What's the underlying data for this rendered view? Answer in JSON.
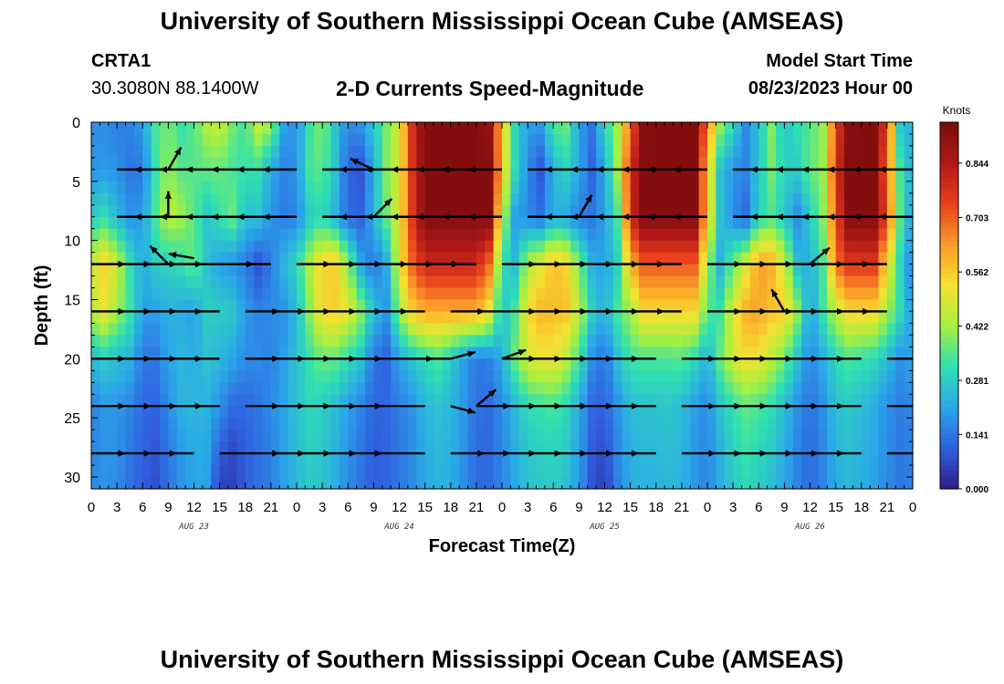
{
  "header": {
    "title": "University of Southern Mississippi Ocean Cube (AMSEAS)",
    "station_id": "CRTA1",
    "coordinates": "30.3080N  88.1400W",
    "variable_title": "2-D Currents Speed-Magnitude",
    "model_start_label": "Model Start Time",
    "model_start_value": "08/23/2023 Hour 00"
  },
  "footer": {
    "title": "University of Southern Mississippi Ocean Cube (AMSEAS)"
  },
  "chart_data": {
    "type": "heatmap",
    "title": "2-D Currents Speed-Magnitude",
    "xlabel": "Forecast Time(Z)",
    "ylabel": "Depth (ft)",
    "xlim": [
      0,
      96
    ],
    "ylim": [
      0,
      31
    ],
    "x_ticks": [
      0,
      3,
      6,
      9,
      12,
      15,
      18,
      21,
      24,
      27,
      30,
      33,
      36,
      39,
      42,
      45,
      48,
      51,
      54,
      57,
      60,
      63,
      66,
      69,
      72,
      75,
      78,
      81,
      84,
      87,
      90,
      93,
      96
    ],
    "x_tick_labels": [
      "0",
      "3",
      "6",
      "9",
      "12",
      "15",
      "18",
      "21",
      "0",
      "3",
      "6",
      "9",
      "12",
      "15",
      "18",
      "21",
      "0",
      "3",
      "6",
      "9",
      "12",
      "15",
      "18",
      "21",
      "0",
      "3",
      "6",
      "9",
      "12",
      "15",
      "18",
      "21",
      "0"
    ],
    "day_labels": [
      {
        "x": 12,
        "label": "AUG 23"
      },
      {
        "x": 36,
        "label": "AUG 24"
      },
      {
        "x": 60,
        "label": "AUG 25"
      },
      {
        "x": 84,
        "label": "AUG 26"
      }
    ],
    "y_ticks": [
      0,
      5,
      10,
      15,
      20,
      25,
      30
    ],
    "y_tick_labels": [
      "0",
      "5",
      "10",
      "15",
      "20",
      "25",
      "30"
    ],
    "colorbar": {
      "label": "Knots",
      "min": 0.0,
      "max": 0.95,
      "ticks": [
        0.0,
        0.141,
        0.281,
        0.422,
        0.562,
        0.703,
        0.844
      ],
      "tick_labels": [
        "0.000",
        "0.141",
        "0.281",
        "0.422",
        "0.562",
        "0.703",
        "0.844"
      ],
      "colors": [
        "#2e1d8a",
        "#3060e0",
        "#2aa8e8",
        "#30e0b0",
        "#a6f040",
        "#f6e030",
        "#fb9a28",
        "#e8401c",
        "#b01818",
        "#7a0c0c"
      ]
    },
    "time_hours": [
      0,
      1.5,
      3,
      4.5,
      6,
      7.5,
      9,
      10.5,
      12,
      13.5,
      15,
      16.5,
      18,
      19.5,
      21,
      22.5,
      24,
      25.5,
      27,
      28.5,
      30,
      31.5,
      33,
      34.5,
      36,
      37.5,
      39,
      40.5,
      42,
      43.5,
      45,
      46.5,
      48,
      49.5,
      51,
      52.5,
      54,
      55.5,
      57,
      58.5,
      60,
      61.5,
      63,
      64.5,
      66,
      67.5,
      69,
      70.5,
      72,
      73.5,
      75,
      76.5,
      78,
      79.5,
      81,
      82.5,
      84,
      85.5,
      87,
      88.5,
      90,
      91.5,
      93,
      94.5,
      96
    ],
    "depth_ft": [
      0,
      4,
      8,
      12,
      16,
      20,
      24,
      28,
      31
    ],
    "speed_kn": [
      [
        0.18,
        0.17,
        0.15,
        0.16,
        0.2,
        0.34,
        0.38,
        0.32,
        0.35,
        0.44,
        0.47,
        0.38,
        0.33,
        0.47,
        0.42,
        0.21,
        0.18,
        0.32,
        0.4,
        0.26,
        0.17,
        0.19,
        0.27,
        0.38,
        0.49,
        0.78,
        0.93,
        0.93,
        0.93,
        0.93,
        0.93,
        0.89,
        0.57,
        0.3,
        0.2,
        0.2,
        0.35,
        0.37,
        0.2,
        0.14,
        0.3,
        0.42,
        0.69,
        0.92,
        0.93,
        0.93,
        0.93,
        0.93,
        0.67,
        0.42,
        0.3,
        0.17,
        0.26,
        0.39,
        0.25,
        0.32,
        0.35,
        0.41,
        0.73,
        0.92,
        0.93,
        0.93,
        0.75,
        0.27,
        0.21
      ],
      [
        0.18,
        0.19,
        0.18,
        0.14,
        0.14,
        0.32,
        0.41,
        0.35,
        0.35,
        0.36,
        0.37,
        0.34,
        0.32,
        0.32,
        0.22,
        0.16,
        0.18,
        0.34,
        0.36,
        0.26,
        0.11,
        0.09,
        0.22,
        0.39,
        0.49,
        0.77,
        0.93,
        0.93,
        0.93,
        0.93,
        0.93,
        0.93,
        0.57,
        0.31,
        0.17,
        0.09,
        0.24,
        0.29,
        0.22,
        0.11,
        0.22,
        0.42,
        0.78,
        0.93,
        0.93,
        0.93,
        0.93,
        0.93,
        0.57,
        0.26,
        0.18,
        0.16,
        0.27,
        0.38,
        0.29,
        0.28,
        0.36,
        0.41,
        0.77,
        0.93,
        0.93,
        0.93,
        0.69,
        0.34,
        0.21
      ],
      [
        0.28,
        0.31,
        0.24,
        0.18,
        0.19,
        0.34,
        0.45,
        0.42,
        0.35,
        0.27,
        0.32,
        0.37,
        0.25,
        0.26,
        0.18,
        0.15,
        0.16,
        0.27,
        0.31,
        0.23,
        0.12,
        0.11,
        0.23,
        0.37,
        0.5,
        0.76,
        0.93,
        0.93,
        0.93,
        0.93,
        0.93,
        0.93,
        0.47,
        0.2,
        0.17,
        0.13,
        0.23,
        0.21,
        0.15,
        0.14,
        0.2,
        0.34,
        0.78,
        0.93,
        0.93,
        0.93,
        0.93,
        0.93,
        0.56,
        0.26,
        0.17,
        0.12,
        0.29,
        0.34,
        0.27,
        0.17,
        0.27,
        0.4,
        0.72,
        0.93,
        0.93,
        0.93,
        0.73,
        0.36,
        0.18
      ],
      [
        0.46,
        0.55,
        0.46,
        0.32,
        0.21,
        0.28,
        0.29,
        0.31,
        0.37,
        0.26,
        0.2,
        0.18,
        0.15,
        0.08,
        0.15,
        0.24,
        0.3,
        0.43,
        0.55,
        0.55,
        0.4,
        0.21,
        0.13,
        0.22,
        0.5,
        0.7,
        0.8,
        0.8,
        0.8,
        0.8,
        0.8,
        0.69,
        0.31,
        0.25,
        0.43,
        0.5,
        0.58,
        0.54,
        0.38,
        0.23,
        0.2,
        0.29,
        0.59,
        0.71,
        0.71,
        0.71,
        0.71,
        0.71,
        0.42,
        0.23,
        0.37,
        0.48,
        0.63,
        0.6,
        0.47,
        0.25,
        0.22,
        0.34,
        0.68,
        0.76,
        0.76,
        0.76,
        0.53,
        0.3,
        0.14
      ],
      [
        0.45,
        0.51,
        0.42,
        0.33,
        0.2,
        0.2,
        0.23,
        0.22,
        0.2,
        0.28,
        0.28,
        0.27,
        0.19,
        0.16,
        0.17,
        0.18,
        0.24,
        0.4,
        0.54,
        0.55,
        0.51,
        0.4,
        0.25,
        0.19,
        0.41,
        0.55,
        0.61,
        0.61,
        0.61,
        0.61,
        0.61,
        0.51,
        0.26,
        0.34,
        0.53,
        0.59,
        0.58,
        0.57,
        0.45,
        0.29,
        0.22,
        0.34,
        0.42,
        0.54,
        0.54,
        0.54,
        0.54,
        0.54,
        0.34,
        0.33,
        0.49,
        0.6,
        0.62,
        0.57,
        0.56,
        0.41,
        0.19,
        0.33,
        0.45,
        0.54,
        0.54,
        0.54,
        0.42,
        0.31,
        0.18
      ],
      [
        0.24,
        0.28,
        0.25,
        0.23,
        0.14,
        0.14,
        0.21,
        0.24,
        0.22,
        0.26,
        0.24,
        0.21,
        0.17,
        0.17,
        0.15,
        0.2,
        0.26,
        0.32,
        0.37,
        0.36,
        0.31,
        0.26,
        0.14,
        0.11,
        0.21,
        0.26,
        0.31,
        0.34,
        0.28,
        0.2,
        0.14,
        0.16,
        0.22,
        0.37,
        0.48,
        0.51,
        0.52,
        0.45,
        0.33,
        0.18,
        0.13,
        0.25,
        0.33,
        0.34,
        0.34,
        0.34,
        0.35,
        0.3,
        0.22,
        0.37,
        0.48,
        0.53,
        0.52,
        0.45,
        0.37,
        0.26,
        0.16,
        0.22,
        0.3,
        0.34,
        0.32,
        0.3,
        0.25,
        0.18,
        0.21
      ],
      [
        0.15,
        0.19,
        0.19,
        0.16,
        0.12,
        0.11,
        0.17,
        0.23,
        0.24,
        0.23,
        0.18,
        0.12,
        0.12,
        0.14,
        0.17,
        0.21,
        0.26,
        0.3,
        0.29,
        0.25,
        0.2,
        0.16,
        0.11,
        0.12,
        0.15,
        0.18,
        0.24,
        0.26,
        0.24,
        0.19,
        0.13,
        0.12,
        0.17,
        0.24,
        0.31,
        0.32,
        0.34,
        0.3,
        0.22,
        0.12,
        0.11,
        0.18,
        0.25,
        0.26,
        0.26,
        0.27,
        0.25,
        0.2,
        0.17,
        0.26,
        0.32,
        0.36,
        0.34,
        0.31,
        0.25,
        0.18,
        0.13,
        0.18,
        0.26,
        0.27,
        0.25,
        0.22,
        0.18,
        0.15,
        0.16
      ],
      [
        0.16,
        0.18,
        0.18,
        0.14,
        0.11,
        0.09,
        0.14,
        0.19,
        0.22,
        0.21,
        0.1,
        0.07,
        0.1,
        0.13,
        0.15,
        0.2,
        0.25,
        0.28,
        0.27,
        0.23,
        0.18,
        0.14,
        0.1,
        0.11,
        0.14,
        0.17,
        0.22,
        0.24,
        0.23,
        0.18,
        0.12,
        0.12,
        0.16,
        0.22,
        0.27,
        0.28,
        0.3,
        0.27,
        0.2,
        0.1,
        0.07,
        0.16,
        0.23,
        0.24,
        0.24,
        0.25,
        0.24,
        0.19,
        0.16,
        0.23,
        0.29,
        0.32,
        0.3,
        0.27,
        0.22,
        0.16,
        0.12,
        0.16,
        0.23,
        0.25,
        0.23,
        0.21,
        0.17,
        0.14,
        0.16
      ],
      [
        0.17,
        0.18,
        0.17,
        0.13,
        0.1,
        0.08,
        0.13,
        0.18,
        0.21,
        0.2,
        0.05,
        0.06,
        0.1,
        0.13,
        0.15,
        0.2,
        0.24,
        0.27,
        0.26,
        0.22,
        0.17,
        0.13,
        0.1,
        0.11,
        0.14,
        0.17,
        0.21,
        0.23,
        0.22,
        0.17,
        0.12,
        0.12,
        0.16,
        0.21,
        0.26,
        0.27,
        0.28,
        0.25,
        0.19,
        0.09,
        0.05,
        0.15,
        0.22,
        0.23,
        0.23,
        0.24,
        0.23,
        0.19,
        0.16,
        0.22,
        0.27,
        0.3,
        0.28,
        0.25,
        0.21,
        0.16,
        0.12,
        0.16,
        0.22,
        0.24,
        0.22,
        0.2,
        0.17,
        0.14,
        0.16
      ]
    ],
    "vector_rows": [
      {
        "depth": 4,
        "segments": [
          [
            3,
            24
          ],
          [
            27,
            48
          ],
          [
            51,
            72
          ],
          [
            75,
            96
          ]
        ],
        "dir": "west"
      },
      {
        "depth": 8,
        "segments": [
          [
            3,
            24
          ],
          [
            27,
            48
          ],
          [
            51,
            72
          ],
          [
            75,
            96
          ]
        ],
        "dir": "west"
      },
      {
        "depth": 12,
        "segments": [
          [
            0,
            15
          ],
          [
            15,
            21
          ],
          [
            24,
            45
          ],
          [
            48,
            69
          ],
          [
            72,
            93
          ]
        ],
        "dir": "east"
      },
      {
        "depth": 16,
        "segments": [
          [
            0,
            15
          ],
          [
            18,
            39
          ],
          [
            42,
            48
          ],
          [
            48,
            69
          ],
          [
            72,
            93
          ]
        ],
        "dir": "east"
      },
      {
        "depth": 20,
        "segments": [
          [
            0,
            15
          ],
          [
            18,
            36
          ],
          [
            36,
            42
          ],
          [
            48,
            66
          ],
          [
            69,
            90
          ],
          [
            93,
            96
          ]
        ],
        "dir": "east"
      },
      {
        "depth": 24,
        "segments": [
          [
            0,
            15
          ],
          [
            18,
            36
          ],
          [
            36,
            39
          ],
          [
            45,
            66
          ],
          [
            69,
            90
          ],
          [
            93,
            96
          ]
        ],
        "dir": "east"
      },
      {
        "depth": 28,
        "segments": [
          [
            0,
            12
          ],
          [
            15,
            18
          ],
          [
            18,
            36
          ],
          [
            36,
            39
          ],
          [
            42,
            66
          ],
          [
            69,
            90
          ],
          [
            93,
            96
          ]
        ],
        "dir": "east"
      }
    ],
    "off_axis_vectors": [
      {
        "t": 9,
        "depth": 4,
        "angle": 60
      },
      {
        "t": 9,
        "depth": 8,
        "angle": 90
      },
      {
        "t": 9,
        "depth": 12,
        "angle": 135
      },
      {
        "t": 12,
        "depth": 11.5,
        "angle": 170
      },
      {
        "t": 33,
        "depth": 4,
        "angle": 155
      },
      {
        "t": 33,
        "depth": 8,
        "angle": 45
      },
      {
        "t": 42,
        "depth": 20,
        "angle": 15
      },
      {
        "t": 42,
        "depth": 24,
        "angle": 345
      },
      {
        "t": 45,
        "depth": 24,
        "angle": 40
      },
      {
        "t": 48,
        "depth": 20,
        "angle": 20
      },
      {
        "t": 57,
        "depth": 8,
        "angle": 60
      },
      {
        "t": 81,
        "depth": 16,
        "angle": 120
      },
      {
        "t": 84,
        "depth": 12,
        "angle": 40
      }
    ]
  }
}
